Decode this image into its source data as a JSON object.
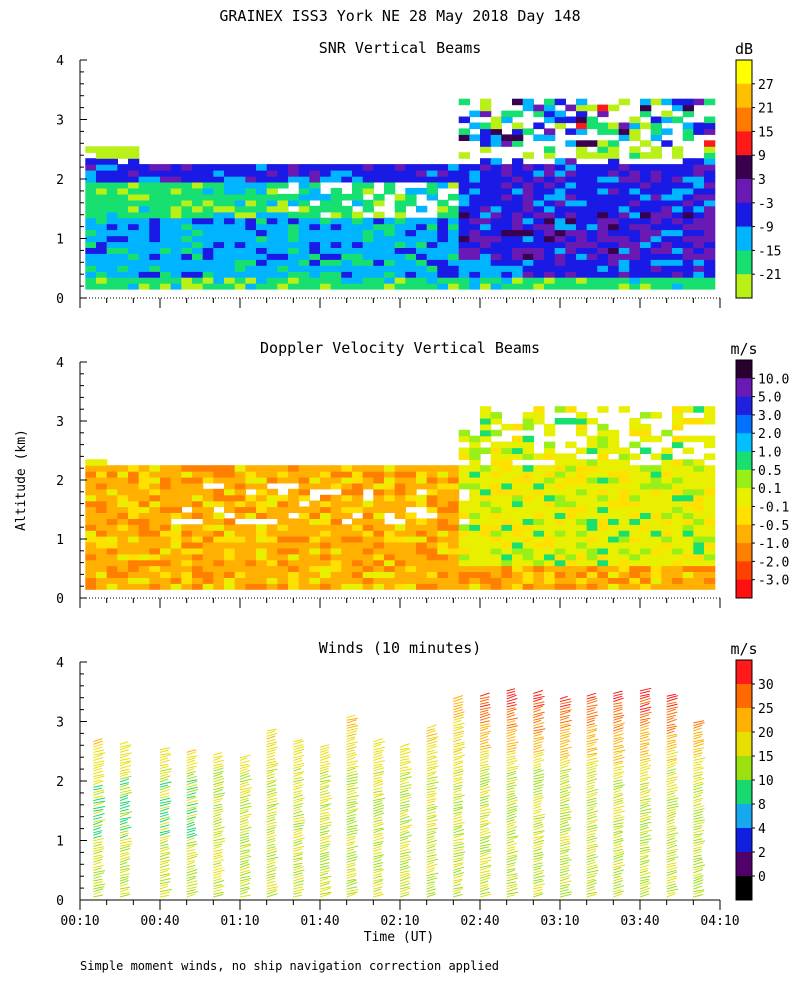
{
  "figure": {
    "title": "GRAINEX ISS3 York NE  28 May 2018 Day 148",
    "ylabel": "Altitude (km)",
    "xlabel": "Time (UT)",
    "footnote": "Simple moment winds, no ship navigation correction applied",
    "time_ticks": [
      "00:10",
      "00:40",
      "01:10",
      "01:40",
      "02:10",
      "02:40",
      "03:10",
      "03:40",
      "04:10"
    ]
  },
  "chart_data": [
    {
      "type": "heatmap",
      "title": "SNR Vertical Beams",
      "units": "dB",
      "x_range_min": [
        10,
        250
      ],
      "ylim": [
        0,
        4
      ],
      "yticks": [
        "0",
        "1",
        "2",
        "3",
        "4"
      ],
      "colorbar_labels": [
        "27",
        "21",
        "15",
        "9",
        "3",
        "-3",
        "-9",
        "-15",
        "-21"
      ],
      "colorbar_colors": [
        "#ffff00",
        "#ffc000",
        "#ff7a00",
        "#ff1a1a",
        "#3a0050",
        "#6a1ab4",
        "#1a1ae6",
        "#00b4ff",
        "#18e070",
        "#b8f018"
      ],
      "field": "snr"
    },
    {
      "type": "heatmap",
      "title": "Doppler Velocity Vertical Beams",
      "units": "m/s",
      "x_range_min": [
        10,
        250
      ],
      "ylim": [
        0,
        4
      ],
      "yticks": [
        "0",
        "1",
        "2",
        "3",
        "4"
      ],
      "colorbar_labels": [
        "10.0",
        "5.0",
        "3.0",
        "2.0",
        "1.0",
        "0.5",
        "0.1",
        "-0.1",
        "-0.5",
        "-1.0",
        "-2.0",
        "-3.0"
      ],
      "colorbar_colors": [
        "#2a0030",
        "#6a1ab4",
        "#2020e0",
        "#0070ff",
        "#00c0ff",
        "#18e070",
        "#98f018",
        "#e8f000",
        "#ffe000",
        "#ffb000",
        "#ff8000",
        "#ff4000",
        "#ff1010"
      ],
      "field": "velocity"
    },
    {
      "type": "wind_barbs",
      "title": "Winds (10 minutes)",
      "units": "m/s",
      "x_range_min": [
        10,
        250
      ],
      "ylim": [
        0,
        4
      ],
      "yticks": [
        "0",
        "1",
        "2",
        "3",
        "4"
      ],
      "colorbar_labels": [
        "30",
        "25",
        "20",
        "15",
        "10",
        "8",
        "4",
        "2",
        "0"
      ],
      "colorbar_colors": [
        "#ff1a1a",
        "#ff6a00",
        "#ffb000",
        "#e8e000",
        "#9ce010",
        "#18d870",
        "#18a8f0",
        "#1020e0",
        "#50006a",
        "#000000"
      ],
      "profile_times_min": [
        15,
        25,
        40,
        50,
        60,
        70,
        80,
        90,
        100,
        110,
        120,
        130,
        140,
        150,
        160,
        170,
        180,
        190,
        200,
        210,
        220,
        230,
        240
      ],
      "profile_tops_km": [
        2.7,
        2.65,
        2.55,
        2.5,
        2.45,
        2.4,
        2.85,
        2.7,
        2.6,
        3.1,
        2.7,
        2.6,
        2.9,
        3.4,
        3.45,
        3.55,
        3.5,
        3.4,
        3.45,
        3.5,
        3.55,
        3.45,
        3.0
      ]
    }
  ]
}
